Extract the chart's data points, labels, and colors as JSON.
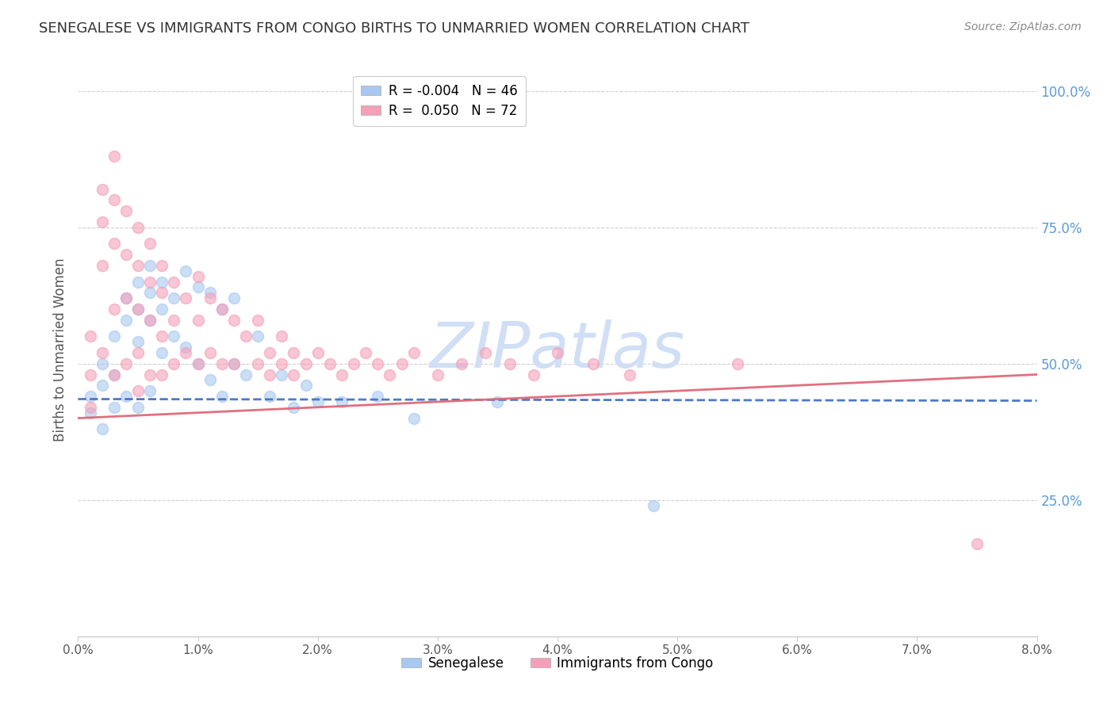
{
  "title": "SENEGALESE VS IMMIGRANTS FROM CONGO BIRTHS TO UNMARRIED WOMEN CORRELATION CHART",
  "source": "Source: ZipAtlas.com",
  "ylabel": "Births to Unmarried Women",
  "xlim": [
    0.0,
    0.08
  ],
  "ylim": [
    0.0,
    1.05
  ],
  "right_yticks": [
    0.0,
    0.25,
    0.5,
    0.75,
    1.0
  ],
  "right_yticklabels": [
    "",
    "25.0%",
    "50.0%",
    "75.0%",
    "100.0%"
  ],
  "series1_name": "Senegalese",
  "series1_color": "#a8c8f0",
  "series1_line_color": "#4472c4",
  "series1_R": -0.004,
  "series1_N": 46,
  "series2_name": "Immigrants from Congo",
  "series2_color": "#f4a0b8",
  "series2_line_color": "#e06878",
  "series2_R": 0.05,
  "series2_N": 72,
  "grid_color": "#d0d0d0",
  "watermark_color": "#d0dff5",
  "background_color": "#ffffff",
  "title_color": "#333333",
  "right_axis_color": "#5b9bd5",
  "title_fontsize": 13,
  "source_fontsize": 10,
  "scatter_alpha": 0.6,
  "scatter_size": 100,
  "senegalese_x": [
    0.001,
    0.001,
    0.002,
    0.002,
    0.002,
    0.003,
    0.003,
    0.003,
    0.004,
    0.004,
    0.004,
    0.005,
    0.005,
    0.005,
    0.005,
    0.006,
    0.006,
    0.006,
    0.006,
    0.007,
    0.007,
    0.007,
    0.008,
    0.008,
    0.009,
    0.009,
    0.01,
    0.01,
    0.011,
    0.011,
    0.012,
    0.012,
    0.013,
    0.013,
    0.014,
    0.015,
    0.016,
    0.017,
    0.018,
    0.019,
    0.02,
    0.022,
    0.025,
    0.028,
    0.035,
    0.048
  ],
  "senegalese_y": [
    0.44,
    0.41,
    0.5,
    0.46,
    0.38,
    0.55,
    0.48,
    0.42,
    0.62,
    0.58,
    0.44,
    0.65,
    0.6,
    0.54,
    0.42,
    0.68,
    0.63,
    0.58,
    0.45,
    0.65,
    0.6,
    0.52,
    0.62,
    0.55,
    0.67,
    0.53,
    0.64,
    0.5,
    0.63,
    0.47,
    0.6,
    0.44,
    0.62,
    0.5,
    0.48,
    0.55,
    0.44,
    0.48,
    0.42,
    0.46,
    0.43,
    0.43,
    0.44,
    0.4,
    0.43,
    0.24
  ],
  "congo_x": [
    0.001,
    0.001,
    0.001,
    0.002,
    0.002,
    0.002,
    0.002,
    0.003,
    0.003,
    0.003,
    0.003,
    0.003,
    0.004,
    0.004,
    0.004,
    0.004,
    0.005,
    0.005,
    0.005,
    0.005,
    0.005,
    0.006,
    0.006,
    0.006,
    0.006,
    0.007,
    0.007,
    0.007,
    0.007,
    0.008,
    0.008,
    0.008,
    0.009,
    0.009,
    0.01,
    0.01,
    0.01,
    0.011,
    0.011,
    0.012,
    0.012,
    0.013,
    0.013,
    0.014,
    0.015,
    0.015,
    0.016,
    0.016,
    0.017,
    0.017,
    0.018,
    0.018,
    0.019,
    0.02,
    0.021,
    0.022,
    0.023,
    0.024,
    0.025,
    0.026,
    0.027,
    0.028,
    0.03,
    0.032,
    0.034,
    0.036,
    0.038,
    0.04,
    0.043,
    0.046,
    0.055,
    0.075
  ],
  "congo_y": [
    0.55,
    0.48,
    0.42,
    0.82,
    0.76,
    0.68,
    0.52,
    0.88,
    0.8,
    0.72,
    0.6,
    0.48,
    0.78,
    0.7,
    0.62,
    0.5,
    0.75,
    0.68,
    0.6,
    0.52,
    0.45,
    0.72,
    0.65,
    0.58,
    0.48,
    0.68,
    0.63,
    0.55,
    0.48,
    0.65,
    0.58,
    0.5,
    0.62,
    0.52,
    0.66,
    0.58,
    0.5,
    0.62,
    0.52,
    0.6,
    0.5,
    0.58,
    0.5,
    0.55,
    0.58,
    0.5,
    0.52,
    0.48,
    0.55,
    0.5,
    0.52,
    0.48,
    0.5,
    0.52,
    0.5,
    0.48,
    0.5,
    0.52,
    0.5,
    0.48,
    0.5,
    0.52,
    0.48,
    0.5,
    0.52,
    0.5,
    0.48,
    0.52,
    0.5,
    0.48,
    0.5,
    0.17
  ],
  "trend1_x": [
    0.0,
    0.08
  ],
  "trend1_y": [
    0.435,
    0.432
  ],
  "trend2_x": [
    0.0,
    0.08
  ],
  "trend2_y": [
    0.4,
    0.48
  ]
}
